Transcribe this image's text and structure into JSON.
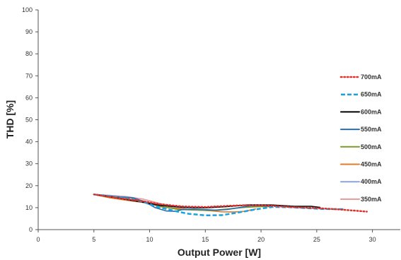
{
  "chart_data": {
    "type": "line",
    "title": "",
    "xlabel": "Output Power [W]",
    "ylabel": "THD [%]",
    "xlim": [
      0,
      32.5
    ],
    "ylim": [
      0,
      100
    ],
    "xticks": [
      0,
      5,
      10,
      15,
      20,
      25,
      30
    ],
    "yticks": [
      0,
      10,
      20,
      30,
      40,
      50,
      60,
      70,
      80,
      90,
      100
    ],
    "grid": false,
    "legend_position": "right",
    "series": [
      {
        "name": "700mA",
        "color": "#e0302a",
        "dash": "dotted",
        "x": [
          5,
          7,
          9,
          11,
          13,
          15,
          17,
          19,
          21,
          23,
          25,
          27,
          29.5
        ],
        "y": [
          16,
          14.5,
          13.2,
          11.5,
          10.5,
          10.3,
          10.8,
          11.2,
          10.8,
          10.2,
          9.8,
          9.2,
          8.2
        ]
      },
      {
        "name": "650mA",
        "color": "#1aa3e0",
        "dash": "dashed",
        "x": [
          5,
          6.5,
          8,
          9.5,
          10.5,
          11.5,
          12.5,
          13.5,
          15,
          16.5,
          18,
          19.5,
          21,
          22.5,
          24,
          25.5,
          27.5
        ],
        "y": [
          16,
          15.2,
          14.2,
          12.5,
          10.6,
          9.4,
          8.2,
          7.2,
          6.5,
          6.6,
          7.8,
          9.2,
          10.3,
          10.2,
          9.8,
          9.4,
          9.3
        ]
      },
      {
        "name": "600mA",
        "color": "#000000",
        "dash": "solid",
        "x": [
          5,
          7,
          9,
          11,
          13,
          15,
          17,
          19,
          21,
          23,
          24.5,
          25.3
        ],
        "y": [
          16,
          14.5,
          12.8,
          11,
          10.2,
          10,
          10.5,
          11.3,
          11.2,
          10.6,
          10.6,
          10.1
        ]
      },
      {
        "name": "550mA",
        "color": "#2e6ca8",
        "dash": "solid",
        "x": [
          5,
          7,
          8.5,
          9.5,
          10.5,
          11.5,
          12.3,
          13,
          14,
          15,
          16,
          17,
          18,
          19,
          20,
          21
        ],
        "y": [
          16,
          15,
          14.5,
          12.8,
          10,
          8.5,
          8.3,
          9.2,
          9.3,
          9.1,
          8.8,
          9.2,
          10,
          10.8,
          10.9,
          10.6
        ]
      },
      {
        "name": "500mA",
        "color": "#7a9a2a",
        "dash": "solid",
        "x": [
          5,
          6.5,
          8,
          9.5,
          11,
          12.5,
          14,
          15.5,
          17,
          18.5,
          20,
          21
        ],
        "y": [
          16,
          14.9,
          13.9,
          12.6,
          10.6,
          9.2,
          8.9,
          8.7,
          9.4,
          10.1,
          10.5,
          10.4
        ]
      },
      {
        "name": "450mA",
        "color": "#e07b2a",
        "dash": "solid",
        "x": [
          5,
          6.5,
          8,
          9.5,
          11,
          12.5,
          14,
          15.5,
          16.5,
          17.5,
          18.5,
          19.5
        ],
        "y": [
          16,
          14.4,
          13.3,
          12.3,
          10.4,
          9.6,
          9,
          8.6,
          8.1,
          8,
          8.3,
          9.4
        ]
      },
      {
        "name": "400mA",
        "color": "#8da3d6",
        "dash": "solid",
        "x": [
          5,
          6.5,
          8,
          9.5,
          11,
          12.5,
          14,
          15.5,
          17
        ],
        "y": [
          16,
          15.3,
          14.8,
          13,
          11.2,
          10,
          9.9,
          10,
          10.5
        ]
      },
      {
        "name": "350mA",
        "color": "#e39a9a",
        "dash": "solid",
        "x": [
          5,
          6.5,
          8,
          9.5,
          11,
          12.5,
          13.5
        ],
        "y": [
          16,
          15.6,
          15,
          13.8,
          11.8,
          10.5,
          10.2
        ]
      }
    ]
  }
}
